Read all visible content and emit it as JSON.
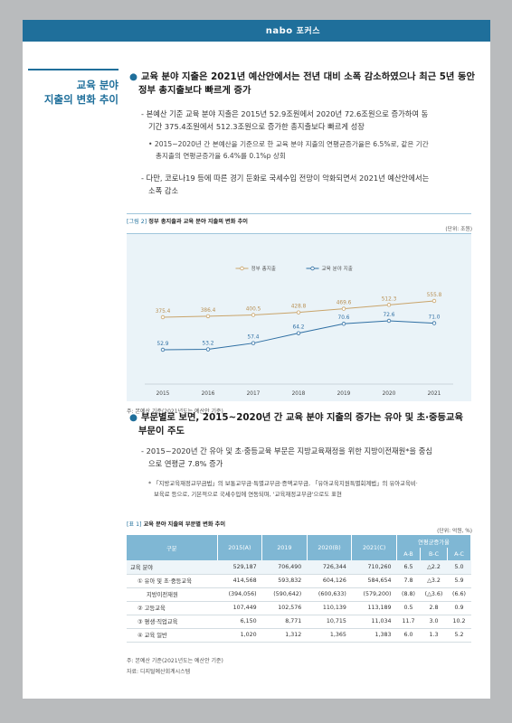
{
  "header": {
    "logo": "nabo",
    "tag": "포커스"
  },
  "sidebar": {
    "title_line1": "교육 분야",
    "title_line2": "지출의 변화 추이"
  },
  "section1": {
    "heading_line1": "교육 분야 지출은 2021년 예산안에서는 전년 대비 소폭 감소하였으나 최근 5년 동안",
    "heading_line2": "정부 총지출보다 빠르게 증가",
    "p1_line1": "- 본예산 기준 교육 분야 지출은 2015년 52.9조원에서 2020년 72.6조원으로 증가하여 동",
    "p1_line2": "기간 375.4조원에서 512.3조원으로 증가한 총지출보다 빠르게 성장",
    "p1_sub_line1": "• 2015~2020년 간 본예산을 기준으로 한 교육 분야 지출의 연평균증가율은 6.5%로, 같은 기간",
    "p1_sub_line2": "총지출의 연평균증가율 6.4%를 0.1%p 상회",
    "p2_line1": "- 다만, 코로나19 등에 따른 경기 둔화로 국세수입 전망이 악화되면서 2021년 예산안에서는",
    "p2_line2": "소폭 감소"
  },
  "figure2": {
    "label": "[그림 2]",
    "title": "정부 총지출과 교육 분야 지출의 변화 추이",
    "unit": "(단위: 조원)",
    "note": "주: 본예산 기준(2021년도는 예산안 기준)"
  },
  "chart_data": {
    "type": "line",
    "x": [
      "2015",
      "2016",
      "2017",
      "2018",
      "2019",
      "2020",
      "2021"
    ],
    "series": [
      {
        "name": "정부 총지출",
        "values": [
          375.4,
          386.4,
          400.5,
          428.8,
          469.6,
          512.3,
          555.8
        ],
        "color": "#c9a46a"
      },
      {
        "name": "교육 분야 지출",
        "values": [
          52.9,
          53.2,
          57.4,
          64.2,
          70.6,
          72.6,
          71.0
        ],
        "color": "#2f6fa3"
      }
    ],
    "value_labels": {
      "정부 총지출": [
        "375.4",
        "386.4",
        "400.5",
        "428.8",
        "469.6",
        "512.3",
        "555.8"
      ],
      "교육 분야 지출": [
        "52.9",
        "53.2",
        "57.4",
        "64.2",
        "70.6",
        "72.6",
        "71.0"
      ]
    },
    "legend_position": "top-center",
    "grid": false
  },
  "section2": {
    "heading_line1": "부문별로 보면, 2015~2020년 간 교육 분야 지출의 증가는 유아 및 초·중등교육",
    "heading_line2": "부문이 주도",
    "p1_line1": "- 2015~2020년 간 유아 및 초·중등교육 부문은 지방교육재정을 위한 지방이전재원*을 중심",
    "p1_line2": "으로 연평균 7.8% 증가",
    "foot_line1": "* 「지방교육재정교부금법」의 보통교부금·특별교부금·증액교부금, 「유아교육지원특별회계법」의 유아교육비·",
    "foot_line2": "보육료 등으로, 기본적으로 국세수입에 연동되며, '교육재정교부금'으로도 표현"
  },
  "table1": {
    "label": "[표 1]",
    "title": "교육 분야 지출의 부문별 변화 추이",
    "unit": "(단위: 억원, %)",
    "headers": [
      "구분",
      "2015(A)",
      "2019",
      "2020(B)",
      "2021(C)",
      "연평균증가율"
    ],
    "sub_headers": [
      "A-B",
      "B-C",
      "A-C"
    ],
    "rows": [
      [
        "교육 분야",
        "529,187",
        "706,490",
        "726,344",
        "710,260",
        "6.5",
        "△2.2",
        "5.0"
      ],
      [
        "① 유아 및 초·중등교육",
        "414,568",
        "593,832",
        "604,126",
        "584,654",
        "7.8",
        "△3.2",
        "5.9"
      ],
      [
        "지방이전재원",
        "(394,056)",
        "(590,642)",
        "(600,633)",
        "(579,200)",
        "(8.8)",
        "(△3.6)",
        "(6.6)"
      ],
      [
        "② 고등교육",
        "107,449",
        "102,576",
        "110,139",
        "113,189",
        "0.5",
        "2.8",
        "0.9"
      ],
      [
        "③ 평생·직업교육",
        "6,150",
        "8,771",
        "10,715",
        "11,034",
        "11.7",
        "3.0",
        "10.2"
      ],
      [
        "④ 교육 일반",
        "1,020",
        "1,312",
        "1,365",
        "1,383",
        "6.0",
        "1.3",
        "5.2"
      ]
    ],
    "note1": "주: 본예산 기준(2021년도는 예산안 기준)",
    "note2": "자료: 디지털예산회계시스템"
  }
}
